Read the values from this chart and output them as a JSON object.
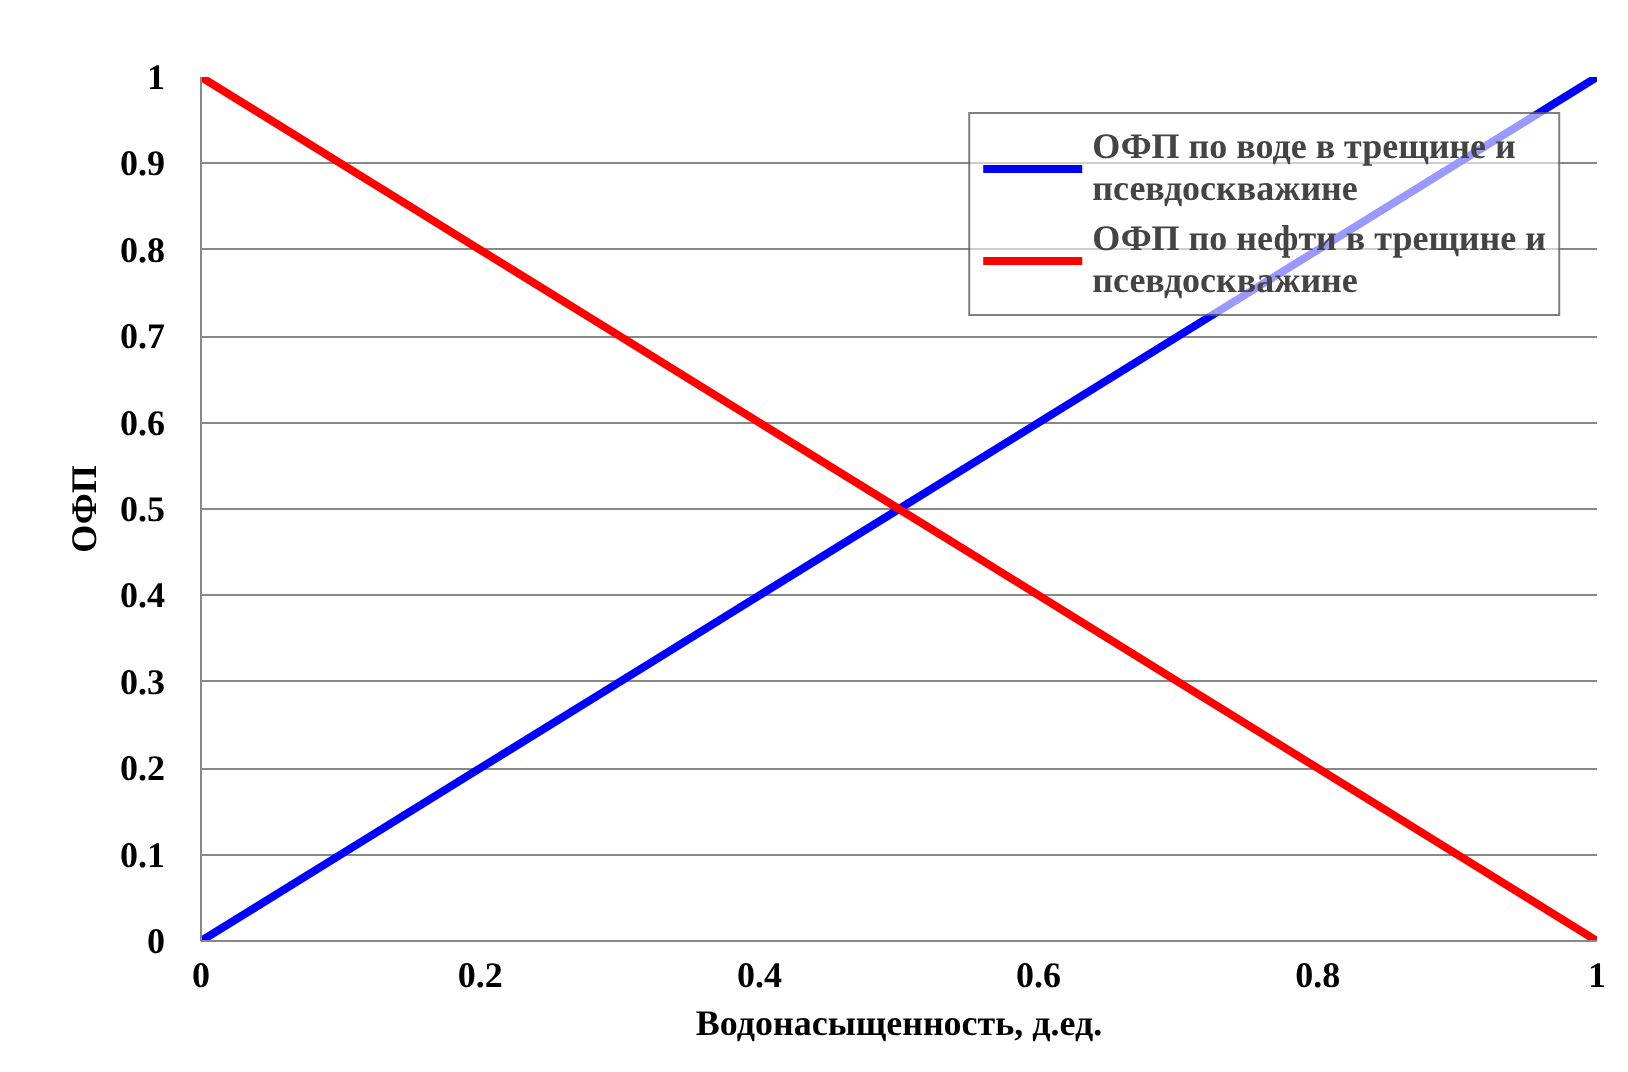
{
  "chart_data": {
    "type": "line",
    "xlabel": "Водонасыщенность, д.ед.",
    "ylabel": "ОФП",
    "series": [
      {
        "name": "ОФП по воде в трещине и псевдоскважине",
        "color": "#0000ff",
        "x": [
          0,
          0.1,
          0.2,
          0.3,
          0.4,
          0.5,
          0.6,
          0.7,
          0.8,
          0.9,
          1
        ],
        "values": [
          0,
          0.1,
          0.2,
          0.3,
          0.4,
          0.5,
          0.6,
          0.7,
          0.8,
          0.9,
          1
        ]
      },
      {
        "name": "ОФП по нефти в трещине и псевдоскважине",
        "color": "#ff0000",
        "x": [
          0,
          0.1,
          0.2,
          0.3,
          0.4,
          0.5,
          0.6,
          0.7,
          0.8,
          0.9,
          1
        ],
        "values": [
          1,
          0.9,
          0.8,
          0.7,
          0.6,
          0.5,
          0.4,
          0.3,
          0.2,
          0.1,
          0
        ]
      }
    ],
    "xlim": [
      0,
      1
    ],
    "ylim": [
      0,
      1
    ],
    "xticks": [
      0,
      0.2,
      0.4,
      0.6,
      0.8,
      1
    ],
    "yticks": [
      0,
      0.1,
      0.2,
      0.3,
      0.4,
      0.5,
      0.6,
      0.7,
      0.8,
      0.9,
      1
    ],
    "grid": "y",
    "legend": "top right",
    "line_style": "solid",
    "marker": "none"
  }
}
